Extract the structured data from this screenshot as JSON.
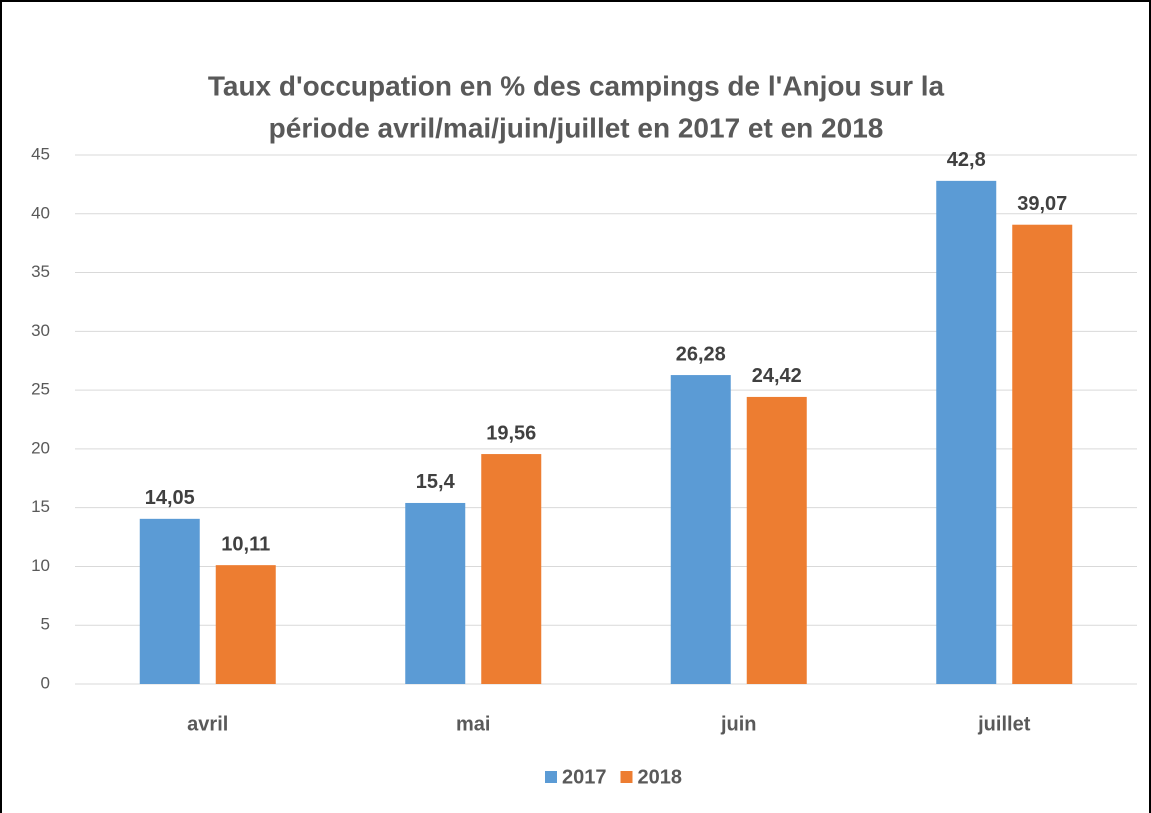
{
  "chart_data": {
    "type": "bar",
    "title": [
      "Taux d'occupation en % des campings de l'Anjou sur la",
      "période avril/mai/juin/juillet en 2017 et en 2018"
    ],
    "categories": [
      "avril",
      "mai",
      "juin",
      "juillet"
    ],
    "series": [
      {
        "name": "2017",
        "color": "#5b9bd5",
        "values": [
          14.05,
          15.4,
          26.28,
          42.8
        ],
        "value_labels": [
          "14,05",
          "15,4",
          "26,28",
          "42,8"
        ]
      },
      {
        "name": "2018",
        "color": "#ed7d31",
        "values": [
          10.11,
          19.56,
          24.42,
          39.07
        ],
        "value_labels": [
          "10,11",
          "19,56",
          "24,42",
          "39,07"
        ]
      }
    ],
    "ylim": [
      0,
      45
    ],
    "yticks": [
      0,
      5,
      10,
      15,
      20,
      25,
      30,
      35,
      40,
      45
    ],
    "grid": true,
    "legend": "bottom"
  }
}
